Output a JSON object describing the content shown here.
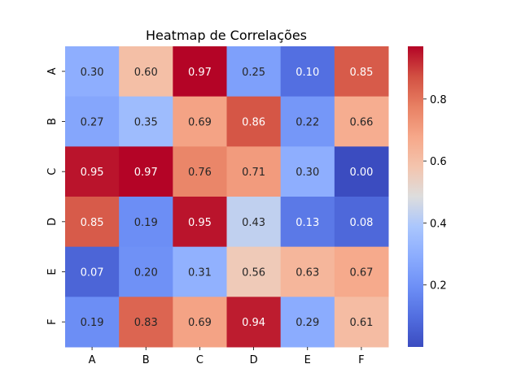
{
  "chart_data": {
    "type": "heatmap",
    "title": "Heatmap de Correlações",
    "xlabel": "",
    "ylabel": "",
    "x_categories": [
      "A",
      "B",
      "C",
      "D",
      "E",
      "F"
    ],
    "y_categories": [
      "A",
      "B",
      "C",
      "D",
      "E",
      "F"
    ],
    "values": [
      [
        0.3,
        0.6,
        0.97,
        0.25,
        0.1,
        0.85
      ],
      [
        0.27,
        0.35,
        0.69,
        0.86,
        0.22,
        0.66
      ],
      [
        0.95,
        0.97,
        0.76,
        0.71,
        0.3,
        0.0
      ],
      [
        0.85,
        0.19,
        0.95,
        0.43,
        0.13,
        0.08
      ],
      [
        0.07,
        0.2,
        0.31,
        0.56,
        0.63,
        0.67
      ],
      [
        0.19,
        0.83,
        0.69,
        0.94,
        0.29,
        0.61
      ]
    ],
    "annotations": [
      [
        "0.30",
        "0.60",
        "0.97",
        "0.25",
        "0.10",
        "0.85"
      ],
      [
        "0.27",
        "0.35",
        "0.69",
        "0.86",
        "0.22",
        "0.66"
      ],
      [
        "0.95",
        "0.97",
        "0.76",
        "0.71",
        "0.30",
        "0.00"
      ],
      [
        "0.85",
        "0.19",
        "0.95",
        "0.43",
        "0.13",
        "0.08"
      ],
      [
        "0.07",
        "0.20",
        "0.31",
        "0.56",
        "0.63",
        "0.67"
      ],
      [
        "0.19",
        "0.83",
        "0.69",
        "0.94",
        "0.29",
        "0.61"
      ]
    ],
    "colormap": "coolwarm",
    "vmin": 0.0,
    "vmax": 0.97,
    "colorbar_ticks": [
      0.2,
      0.4,
      0.6,
      0.8
    ],
    "colorbar_tick_labels": [
      "0.2",
      "0.4",
      "0.6",
      "0.8"
    ],
    "legend_position": "right",
    "grid": false
  }
}
